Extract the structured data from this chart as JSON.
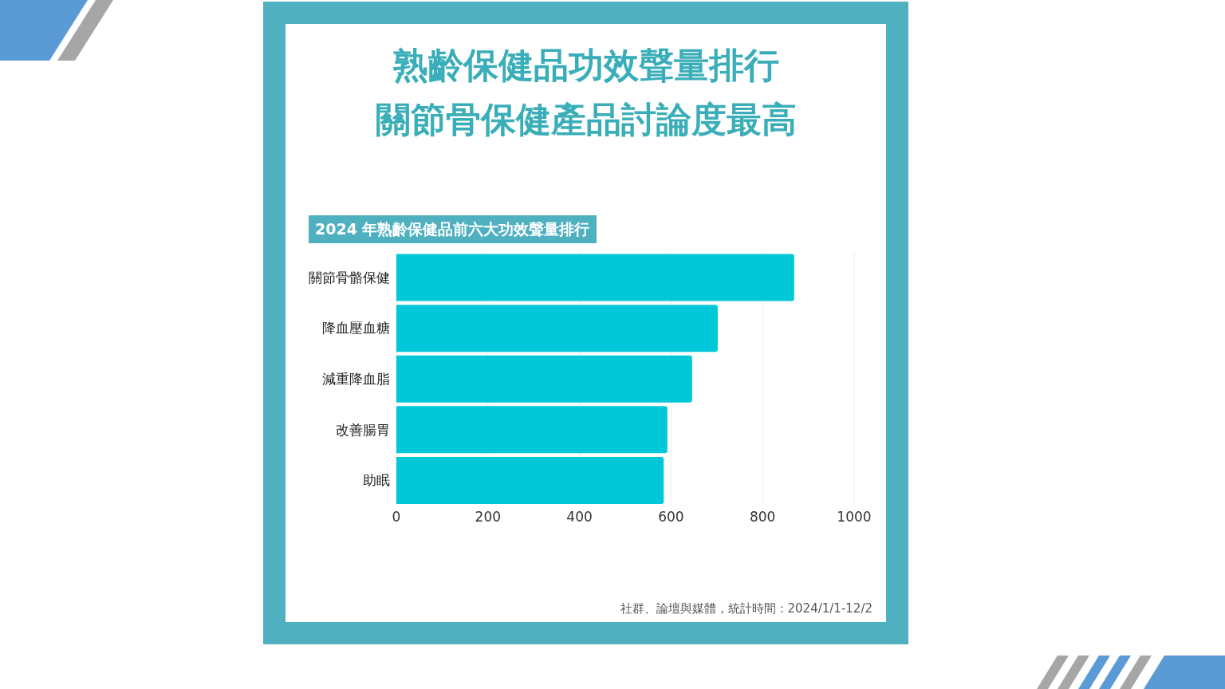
{
  "chart_data": {
    "type": "bar",
    "orientation": "horizontal",
    "title": "熟齡保健品功效聲量排行",
    "subtitle": "關節骨保健產品討論度最高",
    "categories": [
      "關節骨骼保健",
      "降血壓血糖",
      "減重降血脂",
      "改善腸胃",
      "助眠"
    ],
    "values": [
      869,
      702,
      646,
      592,
      584
    ],
    "color": "#00c8d9",
    "xlim": [
      0,
      1000
    ],
    "xticks": [
      0,
      200,
      400,
      600,
      800,
      1000
    ],
    "grid": "x",
    "annotations": [
      "2024 年熟齡保健品前六大功效聲量排行",
      "社群、論壇與媒體，統計時間：2024/1/1-12/2"
    ]
  }
}
